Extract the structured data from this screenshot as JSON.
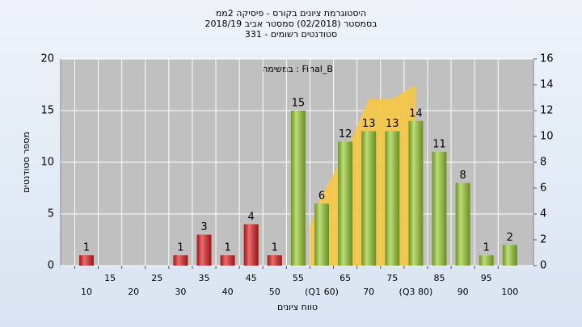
{
  "chart_data": {
    "type": "bar",
    "title": [
      "היסטוגרמת ציונים בקורס - פיסיקה 2ממ",
      "בסמסטר  (02/2018)  סמסטר אביב 2018/19",
      "סטודנטים רשומים - 331"
    ],
    "annotation": "במשימה : Final_B",
    "y_label": "מספר סטודנטים",
    "x_label": "טווח ציונים",
    "categories": [
      "10",
      "15",
      "20",
      "25",
      "30",
      "35",
      "40",
      "45",
      "50",
      "55",
      "(Q1 60)",
      "65",
      "70",
      "75",
      "(Q3 80)",
      "85",
      "90",
      "95",
      "100"
    ],
    "values": [
      1,
      0,
      0,
      0,
      1,
      3,
      1,
      4,
      1,
      15,
      6,
      12,
      13,
      13,
      14,
      11,
      8,
      1,
      2
    ],
    "colors": [
      "#e02020",
      "#e02020",
      "#e02020",
      "#e02020",
      "#e02020",
      "#e02020",
      "#e02020",
      "#e02020",
      "#e02020",
      "#9acd32",
      "#9acd32",
      "#9acd32",
      "#9acd32",
      "#9acd32",
      "#9acd32",
      "#9acd32",
      "#9acd32",
      "#9acd32",
      "#9acd32"
    ],
    "ylim": [
      0,
      20
    ],
    "yticks": [
      0,
      5,
      10,
      15,
      20
    ],
    "y2lim": [
      0,
      16
    ],
    "y2ticks": [
      0,
      2,
      4,
      6,
      8,
      10,
      12,
      14,
      16
    ],
    "area": {
      "axis": "y2",
      "color": "#f7c842",
      "x": [
        57.5,
        60,
        65,
        70,
        75,
        80
      ],
      "values": [
        3,
        5.5,
        8.7,
        12.9,
        12.9,
        14
      ]
    },
    "grid": true
  }
}
